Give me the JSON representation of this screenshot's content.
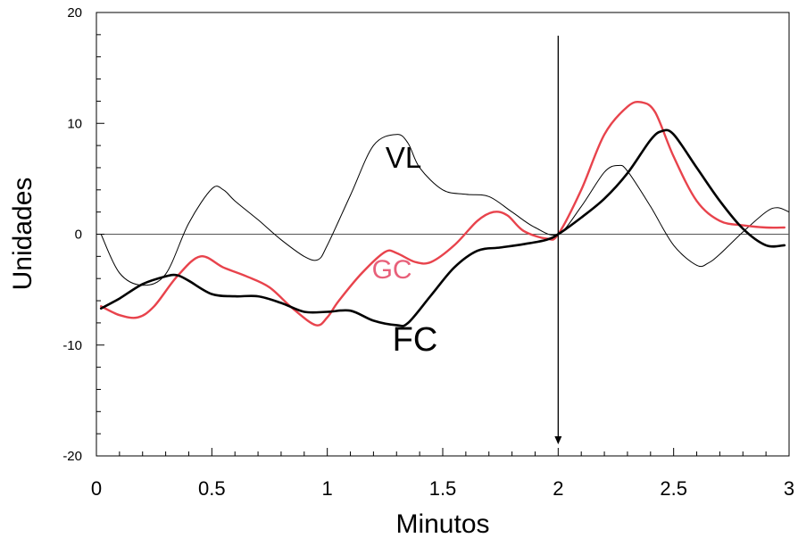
{
  "chart_data": {
    "type": "line",
    "title": "",
    "xlabel": "Minutos",
    "ylabel": "Unidades",
    "xlim": [
      0,
      3
    ],
    "ylim": [
      -20,
      20
    ],
    "x_ticks": [
      0,
      0.5,
      1,
      1.5,
      2,
      2.5,
      3
    ],
    "x_tick_labels": [
      "0",
      "0.5",
      "1",
      "1.5",
      "2",
      "2.5",
      "3"
    ],
    "y_ticks": [
      -20,
      -10,
      0,
      10,
      20
    ],
    "y_tick_labels": [
      "-20",
      "-10",
      "0",
      "10",
      "20"
    ],
    "grid": false,
    "zero_line": 0,
    "marker_x": 2,
    "series": [
      {
        "name": "VL",
        "color": "#000000",
        "x": [
          0.02,
          0.1,
          0.2,
          0.3,
          0.4,
          0.5,
          0.55,
          0.6,
          0.7,
          0.8,
          0.9,
          0.96,
          1.0,
          1.1,
          1.2,
          1.3,
          1.35,
          1.4,
          1.5,
          1.6,
          1.7,
          1.8,
          1.9,
          2.0,
          2.1,
          2.2,
          2.26,
          2.3,
          2.4,
          2.5,
          2.6,
          2.65,
          2.7,
          2.8,
          2.9,
          2.95,
          3.0
        ],
        "y": [
          0,
          -3.5,
          -4.6,
          -3.6,
          1.0,
          4.1,
          4.0,
          3.0,
          1.3,
          -0.5,
          -2.0,
          -2.3,
          -1.0,
          3.5,
          8.0,
          9.0,
          8.2,
          6.0,
          4.0,
          3.6,
          3.4,
          2.0,
          0.6,
          0,
          2.5,
          5.6,
          6.2,
          5.7,
          2.5,
          -1.0,
          -2.8,
          -2.6,
          -1.8,
          0.2,
          2.0,
          2.4,
          2.0
        ]
      },
      {
        "name": "GC",
        "color": "#e8434c",
        "x": [
          0.02,
          0.1,
          0.18,
          0.25,
          0.35,
          0.45,
          0.55,
          0.65,
          0.75,
          0.85,
          0.95,
          1.0,
          1.05,
          1.15,
          1.25,
          1.3,
          1.38,
          1.45,
          1.55,
          1.65,
          1.72,
          1.78,
          1.85,
          1.95,
          2.0,
          2.1,
          2.2,
          2.3,
          2.36,
          2.42,
          2.5,
          2.6,
          2.7,
          2.8,
          2.9,
          2.98
        ],
        "y": [
          -6.5,
          -7.3,
          -7.5,
          -6.5,
          -3.8,
          -2.0,
          -3.0,
          -3.8,
          -4.8,
          -6.7,
          -8.2,
          -7.5,
          -6.0,
          -3.5,
          -1.6,
          -1.7,
          -2.5,
          -2.5,
          -1.0,
          1.2,
          2.0,
          1.7,
          0.3,
          -0.4,
          0,
          4.0,
          9.0,
          11.5,
          11.9,
          11.0,
          7.0,
          3.0,
          1.2,
          0.8,
          0.6,
          0.6
        ]
      },
      {
        "name": "FC",
        "color": "#000000",
        "x": [
          0.02,
          0.1,
          0.2,
          0.3,
          0.35,
          0.4,
          0.5,
          0.6,
          0.7,
          0.8,
          0.9,
          1.0,
          1.1,
          1.2,
          1.3,
          1.35,
          1.45,
          1.55,
          1.65,
          1.75,
          1.85,
          1.95,
          2.0,
          2.1,
          2.2,
          2.3,
          2.4,
          2.45,
          2.5,
          2.6,
          2.7,
          2.8,
          2.9,
          2.98
        ],
        "y": [
          -6.7,
          -5.8,
          -4.5,
          -3.8,
          -3.7,
          -4.2,
          -5.4,
          -5.6,
          -5.6,
          -6.2,
          -7.0,
          -7.0,
          -6.9,
          -7.8,
          -8.2,
          -8.0,
          -5.5,
          -3.0,
          -1.5,
          -1.2,
          -0.9,
          -0.5,
          0,
          1.5,
          3.2,
          5.5,
          8.5,
          9.3,
          9.0,
          6.0,
          3.0,
          0.5,
          -1.0,
          -1.0
        ]
      }
    ],
    "annotations": [
      {
        "text": "VL",
        "x": 1.33,
        "y": 6.0,
        "color": "#000000"
      },
      {
        "text": "GC",
        "x": 1.28,
        "y": -4.0,
        "color": "#e8607a"
      },
      {
        "text": "FC",
        "x": 1.38,
        "y": -10.5,
        "color": "#000000"
      }
    ]
  }
}
